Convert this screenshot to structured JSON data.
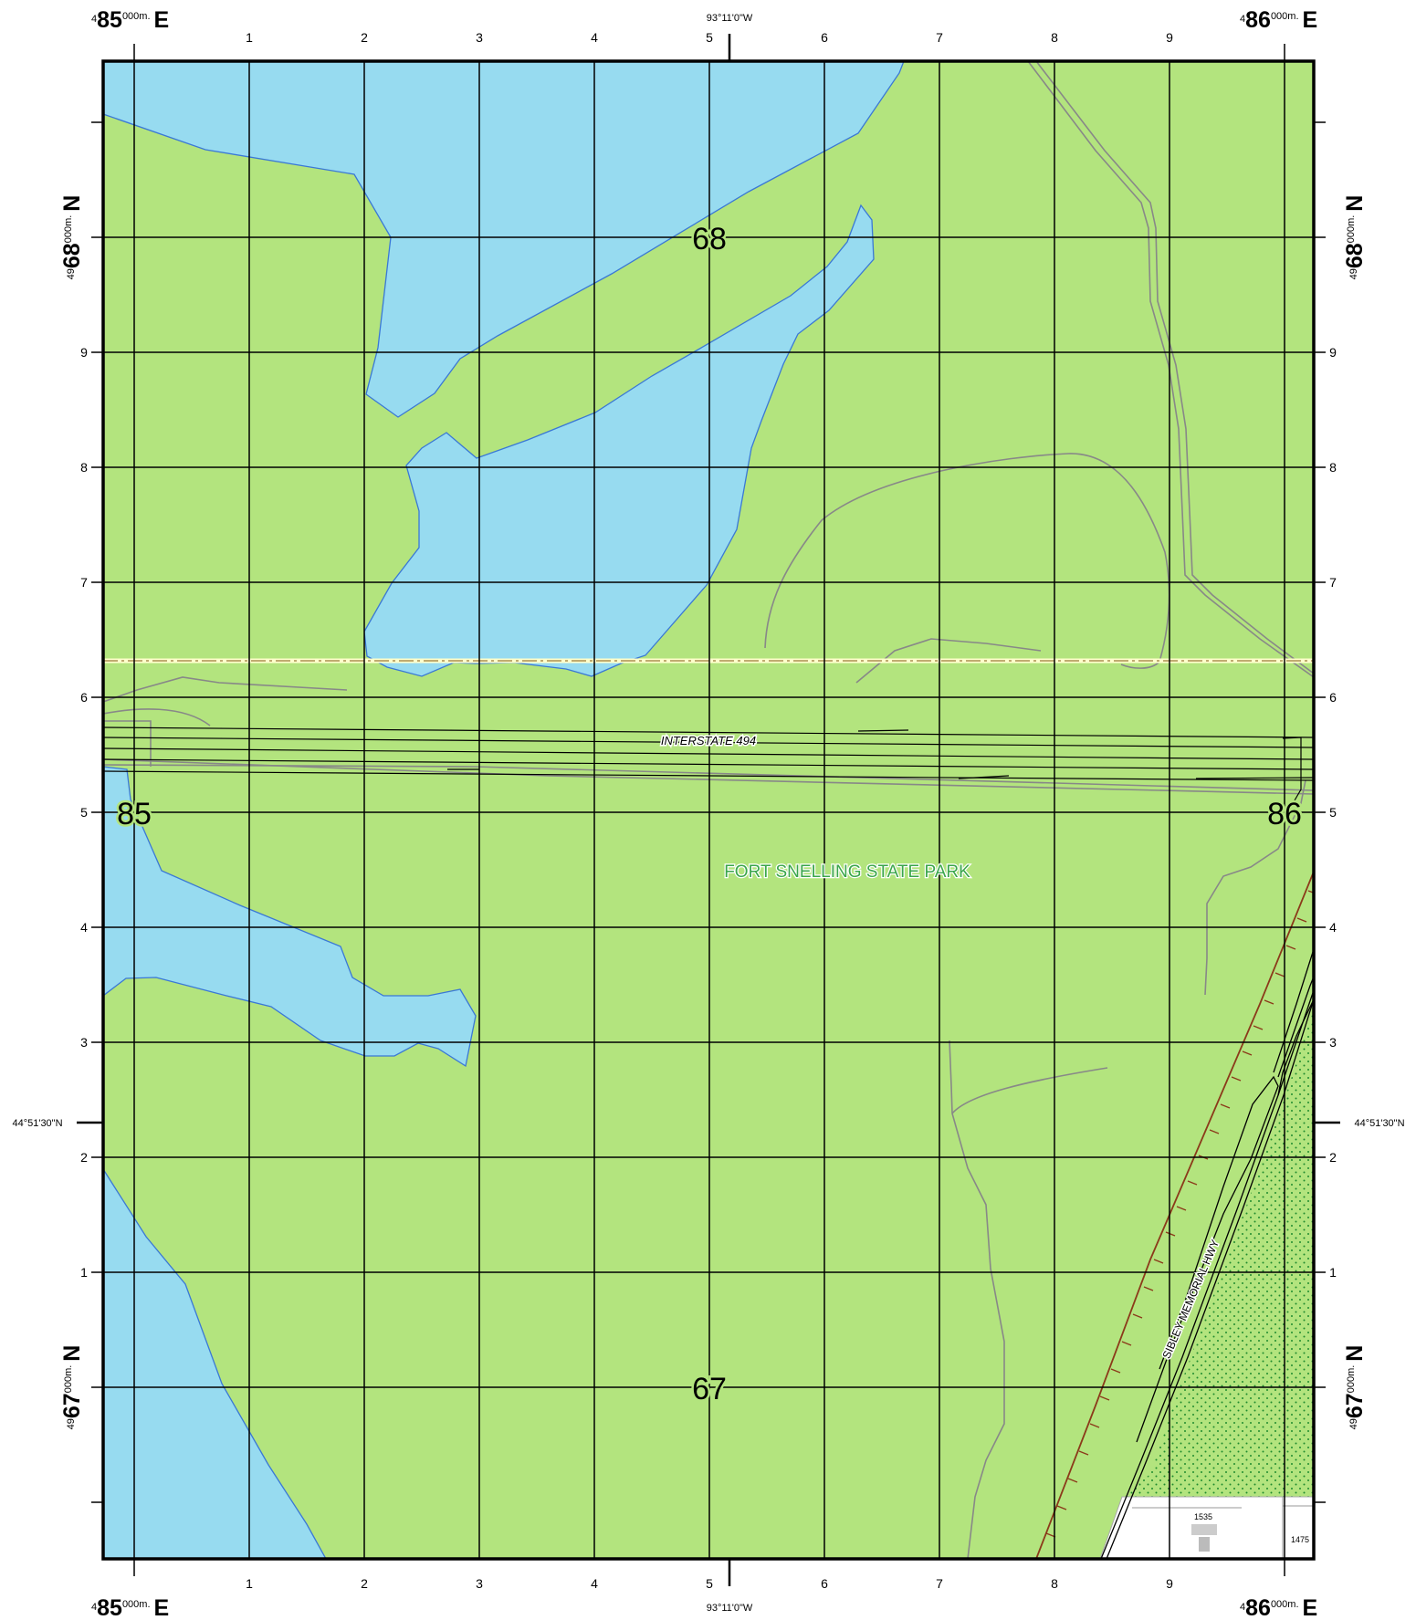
{
  "colors": {
    "land": "#b3e47e",
    "water": "#97dbf0",
    "water_edge": "#3a78d6",
    "grid": "#000000",
    "trail": "#888888",
    "boundary_line": "#ffffcc",
    "railroad": "#8b3a1a",
    "park_label": "#3aa64a",
    "dot_pattern": "#1f8a2e"
  },
  "corners": {
    "top_left": {
      "prefix": "4",
      "main": "85",
      "suffix": "000m.",
      "dir": "E"
    },
    "top_right": {
      "prefix": "4",
      "main": "86",
      "suffix": "000m.",
      "dir": "E"
    },
    "bottom_left": {
      "prefix": "4",
      "main": "85",
      "suffix": "000m.",
      "dir": "E"
    },
    "bottom_right": {
      "prefix": "4",
      "main": "86",
      "suffix": "000m.",
      "dir": "E"
    }
  },
  "side_labels": {
    "upper": {
      "prefix": "49",
      "main": "68",
      "suffix": "000m.",
      "dir": "N"
    },
    "lower": {
      "prefix": "49",
      "main": "67",
      "suffix": "000m.",
      "dir": "N"
    }
  },
  "easting_ticks": [
    "1",
    "2",
    "3",
    "4",
    "5",
    "6",
    "7",
    "8",
    "9"
  ],
  "northing_ticks": [
    "9",
    "8",
    "7",
    "6",
    "5",
    "4",
    "3",
    "2",
    "1"
  ],
  "longitude_top": "93°11'0\"W",
  "longitude_bottom": "93°11'0\"W",
  "latitude_left": "44°51'30\"N",
  "latitude_right": "44°51'30\"N",
  "grid_labels": {
    "n68": "68",
    "n67": "67",
    "e85": "85",
    "e86": "86"
  },
  "features": {
    "interstate": "INTERSTATE 494",
    "park": "FORT SNELLING STATE PARK",
    "highway": "SIBLEY MEMORIAL HWY",
    "address_1535": "1535",
    "address_1475": "1475"
  }
}
